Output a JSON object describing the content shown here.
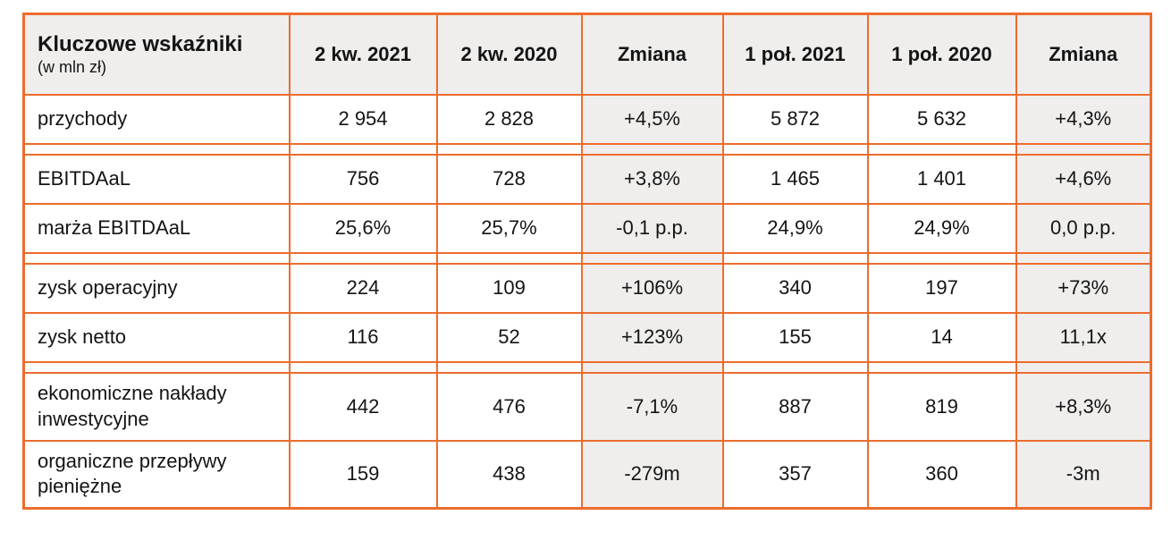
{
  "table": {
    "header": {
      "title": "Kluczowe wskaźniki",
      "subtitle": "(w mln zł)",
      "columns": [
        "2 kw. 2021",
        "2 kw. 2020",
        "Zmiana",
        "1 poł. 2021",
        "1 poł. 2020",
        "Zmiana"
      ]
    },
    "rows": [
      {
        "label": "przychody",
        "values": [
          "2 954",
          "2 828",
          "+4,5%",
          "5 872",
          "5 632",
          "+4,3%"
        ]
      },
      {
        "label": "EBITDAaL",
        "values": [
          "756",
          "728",
          "+3,8%",
          "1 465",
          "1 401",
          "+4,6%"
        ]
      },
      {
        "label": "marża EBITDAaL",
        "values": [
          "25,6%",
          "25,7%",
          "-0,1 p.p.",
          "24,9%",
          "24,9%",
          "0,0 p.p."
        ]
      },
      {
        "label": "zysk operacyjny",
        "values": [
          "224",
          "109",
          "+106%",
          "340",
          "197",
          "+73%"
        ]
      },
      {
        "label": "zysk netto",
        "values": [
          "116",
          "52",
          "+123%",
          "155",
          "14",
          "11,1x"
        ]
      },
      {
        "label": "ekonomiczne nakłady inwestycyjne",
        "values": [
          "442",
          "476",
          "-7,1%",
          "887",
          "819",
          "+8,3%"
        ]
      },
      {
        "label": "organiczne przepływy pieniężne",
        "values": [
          "159",
          "438",
          "-279m",
          "357",
          "360",
          "-3m"
        ]
      }
    ]
  },
  "colors": {
    "border": "#ED6C2D",
    "header_background": "#EFEEED",
    "change_column_background": "#EFEEED",
    "text": "#141414"
  }
}
